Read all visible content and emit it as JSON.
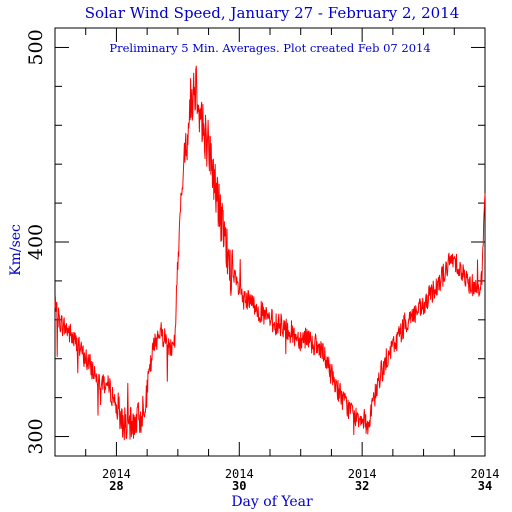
{
  "chart_data": {
    "type": "line",
    "title": "Solar Wind Speed, January 27 - February 2, 2014",
    "subtitle": "Preliminary 5 Min. Averages. Plot created Feb 07 2014",
    "xlabel": "Day of Year",
    "ylabel": "Km/sec",
    "xlim": [
      27,
      34
    ],
    "ylim": [
      290,
      510
    ],
    "grid": false,
    "y_ticks": [
      {
        "value": 300,
        "label": "300"
      },
      {
        "value": 400,
        "label": "400"
      },
      {
        "value": 500,
        "label": "500"
      }
    ],
    "x_ticks": [
      {
        "value": 28,
        "year": "2014",
        "day": "28"
      },
      {
        "value": 30,
        "year": "2014",
        "day": "30"
      },
      {
        "value": 32,
        "year": "2014",
        "day": "32"
      },
      {
        "value": 34,
        "year": "2014",
        "day": "34"
      }
    ],
    "colors": {
      "title": "#0000cc",
      "line": "#ff0000",
      "axes": "#000000"
    },
    "series": [
      {
        "x": [
          27.0,
          27.1,
          27.2,
          27.3,
          27.4,
          27.5,
          27.6,
          27.7,
          27.8,
          27.9,
          28.0,
          28.1,
          28.2,
          28.3,
          28.4,
          28.5,
          28.6,
          28.7,
          28.8,
          28.9,
          28.95,
          29.0,
          29.05,
          29.1,
          29.15,
          29.2,
          29.25,
          29.3,
          29.35,
          29.4,
          29.45,
          29.5,
          29.55,
          29.6,
          29.65,
          29.7,
          29.75,
          29.8,
          29.85,
          29.9,
          30.0,
          30.1,
          30.2,
          30.3,
          30.4,
          30.5,
          30.6,
          30.7,
          30.8,
          30.9,
          31.0,
          31.1,
          31.2,
          31.3,
          31.4,
          31.5,
          31.6,
          31.7,
          31.8,
          31.9,
          32.0,
          32.1,
          32.2,
          32.3,
          32.4,
          32.5,
          32.6,
          32.7,
          32.8,
          32.9,
          33.0,
          33.1,
          33.2,
          33.3,
          33.4,
          33.5,
          33.6,
          33.7,
          33.8,
          33.9,
          33.95,
          34.0
        ],
        "y": [
          365,
          358,
          355,
          350,
          345,
          340,
          335,
          330,
          328,
          324,
          316,
          308,
          305,
          308,
          310,
          325,
          345,
          355,
          350,
          345,
          350,
          390,
          420,
          440,
          455,
          470,
          478,
          482,
          470,
          460,
          455,
          450,
          440,
          430,
          422,
          412,
          402,
          395,
          388,
          382,
          375,
          370,
          368,
          366,
          362,
          360,
          358,
          357,
          355,
          352,
          350,
          352,
          348,
          345,
          340,
          332,
          325,
          318,
          314,
          311,
          310,
          305,
          320,
          332,
          340,
          346,
          352,
          358,
          362,
          364,
          366,
          372,
          378,
          382,
          388,
          392,
          386,
          380,
          378,
          378,
          382,
          425
        ]
      }
    ]
  }
}
